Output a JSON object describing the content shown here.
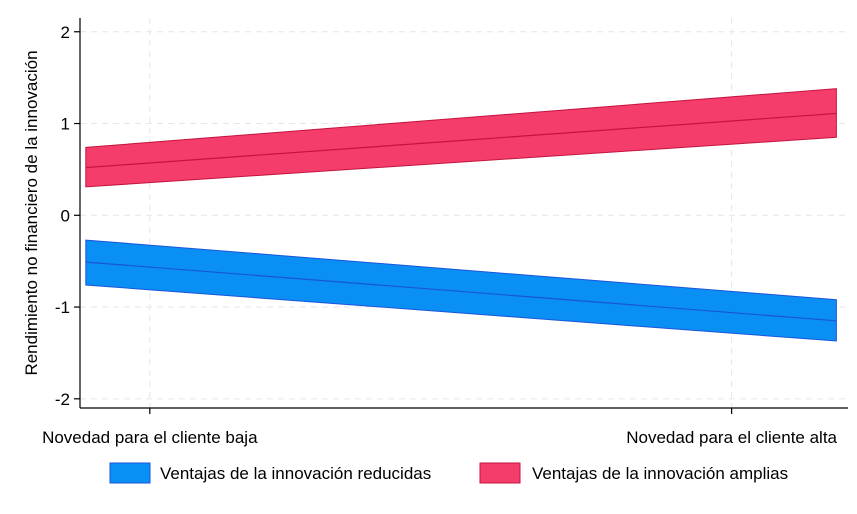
{
  "chart_data": {
    "type": "area",
    "ylabel": "Rendimiento no financiero de la innovación",
    "x_tick_labels": [
      "Novedad para el cliente baja",
      "Novedad para el cliente alta"
    ],
    "x": [
      0,
      1
    ],
    "xlim": [
      -0.12,
      1.2
    ],
    "ylim": [
      -2.1,
      2.15
    ],
    "y_ticks": [
      -2,
      -1,
      0,
      1,
      2
    ],
    "y_tick_labels": [
      "-2",
      "-1",
      "0",
      "1",
      "2"
    ],
    "grid": true,
    "legend_position": "bottom",
    "series": [
      {
        "name": "Ventajas de la innovación reducidas",
        "color": "#0a8ff5",
        "line_color": "#1a55d9",
        "x_range": [
          -0.11,
          1.18
        ],
        "lower": [
          -0.76,
          -1.37
        ],
        "center": [
          -0.51,
          -1.15
        ],
        "upper": [
          -0.27,
          -0.92
        ]
      },
      {
        "name": "Ventajas de la innovación amplias",
        "color": "#f43d6b",
        "line_color": "#c4133f",
        "x_range": [
          -0.11,
          1.18
        ],
        "lower": [
          0.31,
          0.85
        ],
        "center": [
          0.52,
          1.11
        ],
        "upper": [
          0.74,
          1.38
        ]
      }
    ]
  }
}
